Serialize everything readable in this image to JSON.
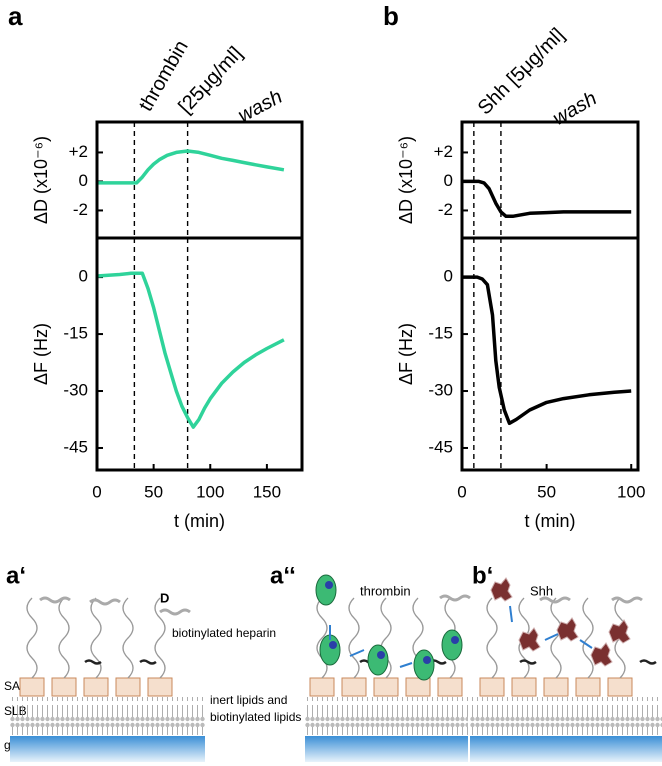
{
  "chart_data": [
    {
      "type": "line",
      "panel": "a",
      "ylabel": "ΔD (x10⁻⁶)",
      "annotations": [
        {
          "text": "thrombin",
          "color": "#2fd39a"
        },
        {
          "text": "[25μg/ml]"
        },
        {
          "text": "wash"
        }
      ],
      "vlines": [
        33,
        80
      ],
      "xlim": [
        0,
        181
      ],
      "ylim": [
        -3.9,
        4.1
      ],
      "yticks": [
        {
          "value": 2,
          "label": "+2"
        },
        0,
        -2
      ],
      "x": [
        0,
        30,
        35,
        40,
        45,
        50,
        55,
        62,
        70,
        80,
        90,
        100,
        110,
        120,
        130,
        140,
        150,
        165
      ],
      "series": [
        {
          "color": "#2fd39a",
          "values": [
            -0.1,
            -0.1,
            -0.1,
            0.3,
            0.8,
            1.2,
            1.5,
            1.8,
            2.0,
            2.1,
            2.0,
            1.8,
            1.6,
            1.45,
            1.3,
            1.15,
            1.0,
            0.8
          ]
        }
      ]
    },
    {
      "type": "line",
      "ylabel": "ΔF (Hz)",
      "xlabel": "t (min)",
      "vlines": [
        33,
        80
      ],
      "xlim": [
        0,
        181
      ],
      "ylim": [
        -50.8,
        10.3
      ],
      "yticks": [
        0,
        -15,
        -30,
        -45
      ],
      "xticks": [
        0,
        50,
        100,
        150
      ],
      "x": [
        0,
        20,
        30,
        40,
        45,
        50,
        55,
        60,
        65,
        70,
        75,
        80,
        85,
        90,
        95,
        100,
        110,
        120,
        130,
        140,
        150,
        165
      ],
      "series": [
        {
          "color": "#2fd39a",
          "values": [
            0.3,
            0.7,
            1,
            1,
            -3,
            -8,
            -14,
            -20,
            -25,
            -30,
            -34,
            -37,
            -39.5,
            -37.5,
            -34.5,
            -32,
            -28,
            -25,
            -22.5,
            -20.5,
            -18.8,
            -16.5
          ]
        }
      ]
    },
    {
      "type": "line",
      "panel": "b",
      "ylabel": "ΔD (x10⁻⁶)",
      "annotations": [
        {
          "text": "Shh [5μg/ml]"
        },
        {
          "text": "wash"
        }
      ],
      "vlines": [
        7,
        23
      ],
      "xlim": [
        0,
        104
      ],
      "ylim": [
        -3.9,
        4.1
      ],
      "yticks": [
        {
          "value": 2,
          "label": "+2"
        },
        0,
        -2
      ],
      "x": [
        0,
        5,
        10,
        13,
        16,
        20,
        23,
        26,
        30,
        35,
        40,
        50,
        60,
        80,
        100
      ],
      "series": [
        {
          "color": "#000000",
          "values": [
            0,
            0,
            0,
            -0.1,
            -0.5,
            -1.5,
            -2.1,
            -2.4,
            -2.4,
            -2.3,
            -2.2,
            -2.15,
            -2.1,
            -2.1,
            -2.1
          ]
        }
      ]
    },
    {
      "type": "line",
      "ylabel": "ΔF (Hz)",
      "xlabel": "t (min)",
      "vlines": [
        7,
        23
      ],
      "xlim": [
        0,
        104
      ],
      "ylim": [
        -50.8,
        10.3
      ],
      "yticks": [
        0,
        -15,
        -30,
        -45
      ],
      "xticks": [
        0,
        50,
        100
      ],
      "x": [
        0,
        5,
        9,
        12,
        15,
        18,
        20,
        22,
        25,
        28,
        32,
        40,
        50,
        60,
        75,
        90,
        100
      ],
      "series": [
        {
          "color": "#000000",
          "values": [
            0,
            0,
            0,
            -0.5,
            -2,
            -10,
            -22,
            -29,
            -35,
            -38.5,
            -37.5,
            -35,
            -33,
            -32,
            -31,
            -30.3,
            -30
          ]
        }
      ]
    }
  ],
  "diagrams": [
    {
      "label": "a‘",
      "arrow_label": "D",
      "strand_label": "biotinylated heparin",
      "layers": [
        "SAv",
        "SLB",
        "glass"
      ]
    },
    {
      "label": "a‘‘",
      "protein": "thrombin",
      "lipids": [
        "inert lipids and",
        "biotinylated lipids"
      ]
    },
    {
      "label": "b‘",
      "protein": "Shh"
    }
  ]
}
